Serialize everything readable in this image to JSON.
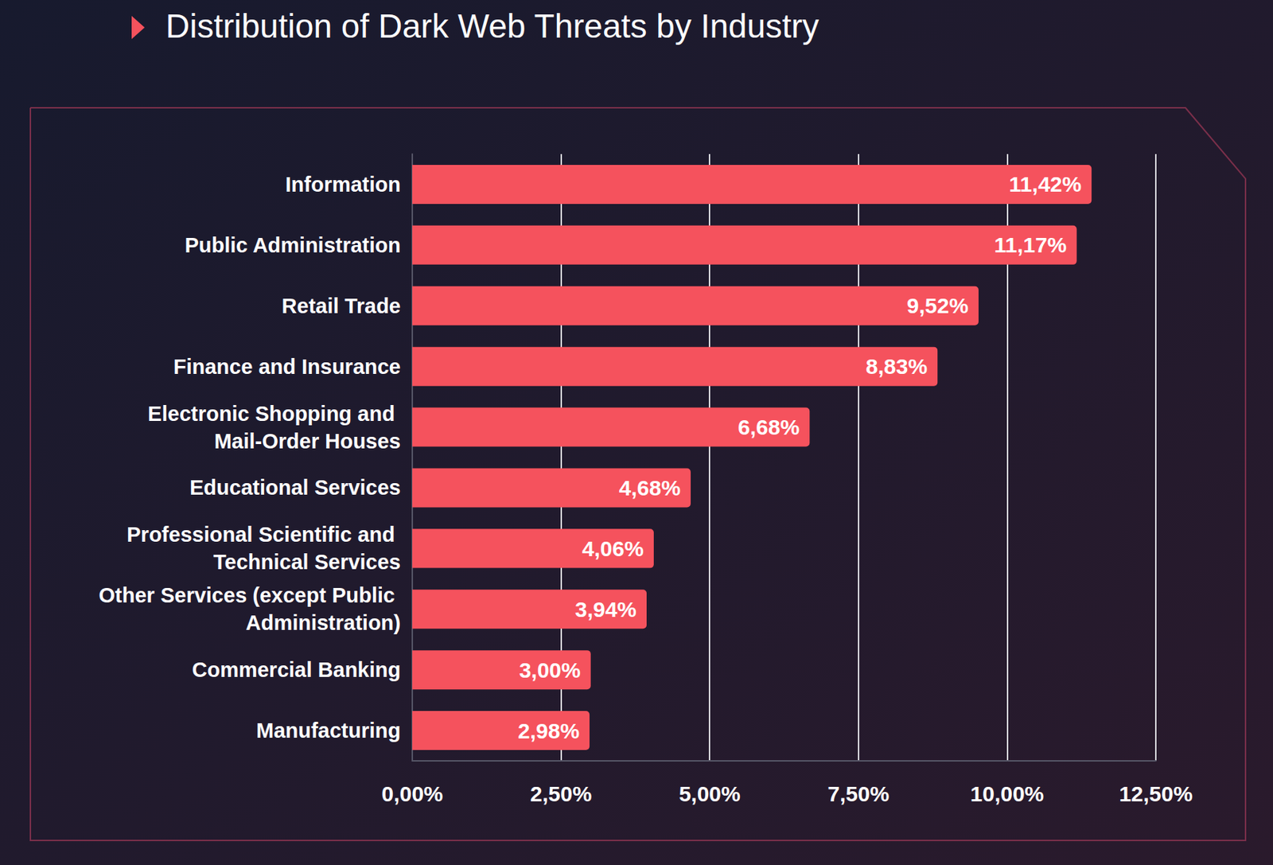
{
  "chart_data": {
    "type": "bar",
    "title": "Distribution of Dark Web Threats by Industry",
    "orientation": "horizontal",
    "categories": [
      "Information",
      "Public Administration",
      "Retail Trade",
      "Finance and Insurance",
      "Electronic Shopping and Mail-Order Houses",
      "Educational Services",
      "Professional Scientific and Technical Services",
      "Other Services (except Public Administration)",
      "Commercial Banking",
      "Manufacturing"
    ],
    "values": [
      11.42,
      11.17,
      9.52,
      8.83,
      6.68,
      4.68,
      4.06,
      3.94,
      3.0,
      2.98
    ],
    "value_labels": [
      "11,42%",
      "11,17%",
      "9,52%",
      "8,83%",
      "6,68%",
      "4,68%",
      "4,06%",
      "3,94%",
      "3,00%",
      "2,98%"
    ],
    "color": "#f5525d",
    "xlim": [
      0,
      12.5
    ],
    "xticks": [
      {
        "value": 0,
        "label": "0,00%"
      },
      {
        "value": 2.5,
        "label": "2,50%"
      },
      {
        "value": 5,
        "label": "5,00%"
      },
      {
        "value": 7.5,
        "label": "7,50%"
      },
      {
        "value": 10,
        "label": "10,00%"
      },
      {
        "value": 12.5,
        "label": "12,50%"
      }
    ],
    "grid": true,
    "data_labels": true
  }
}
